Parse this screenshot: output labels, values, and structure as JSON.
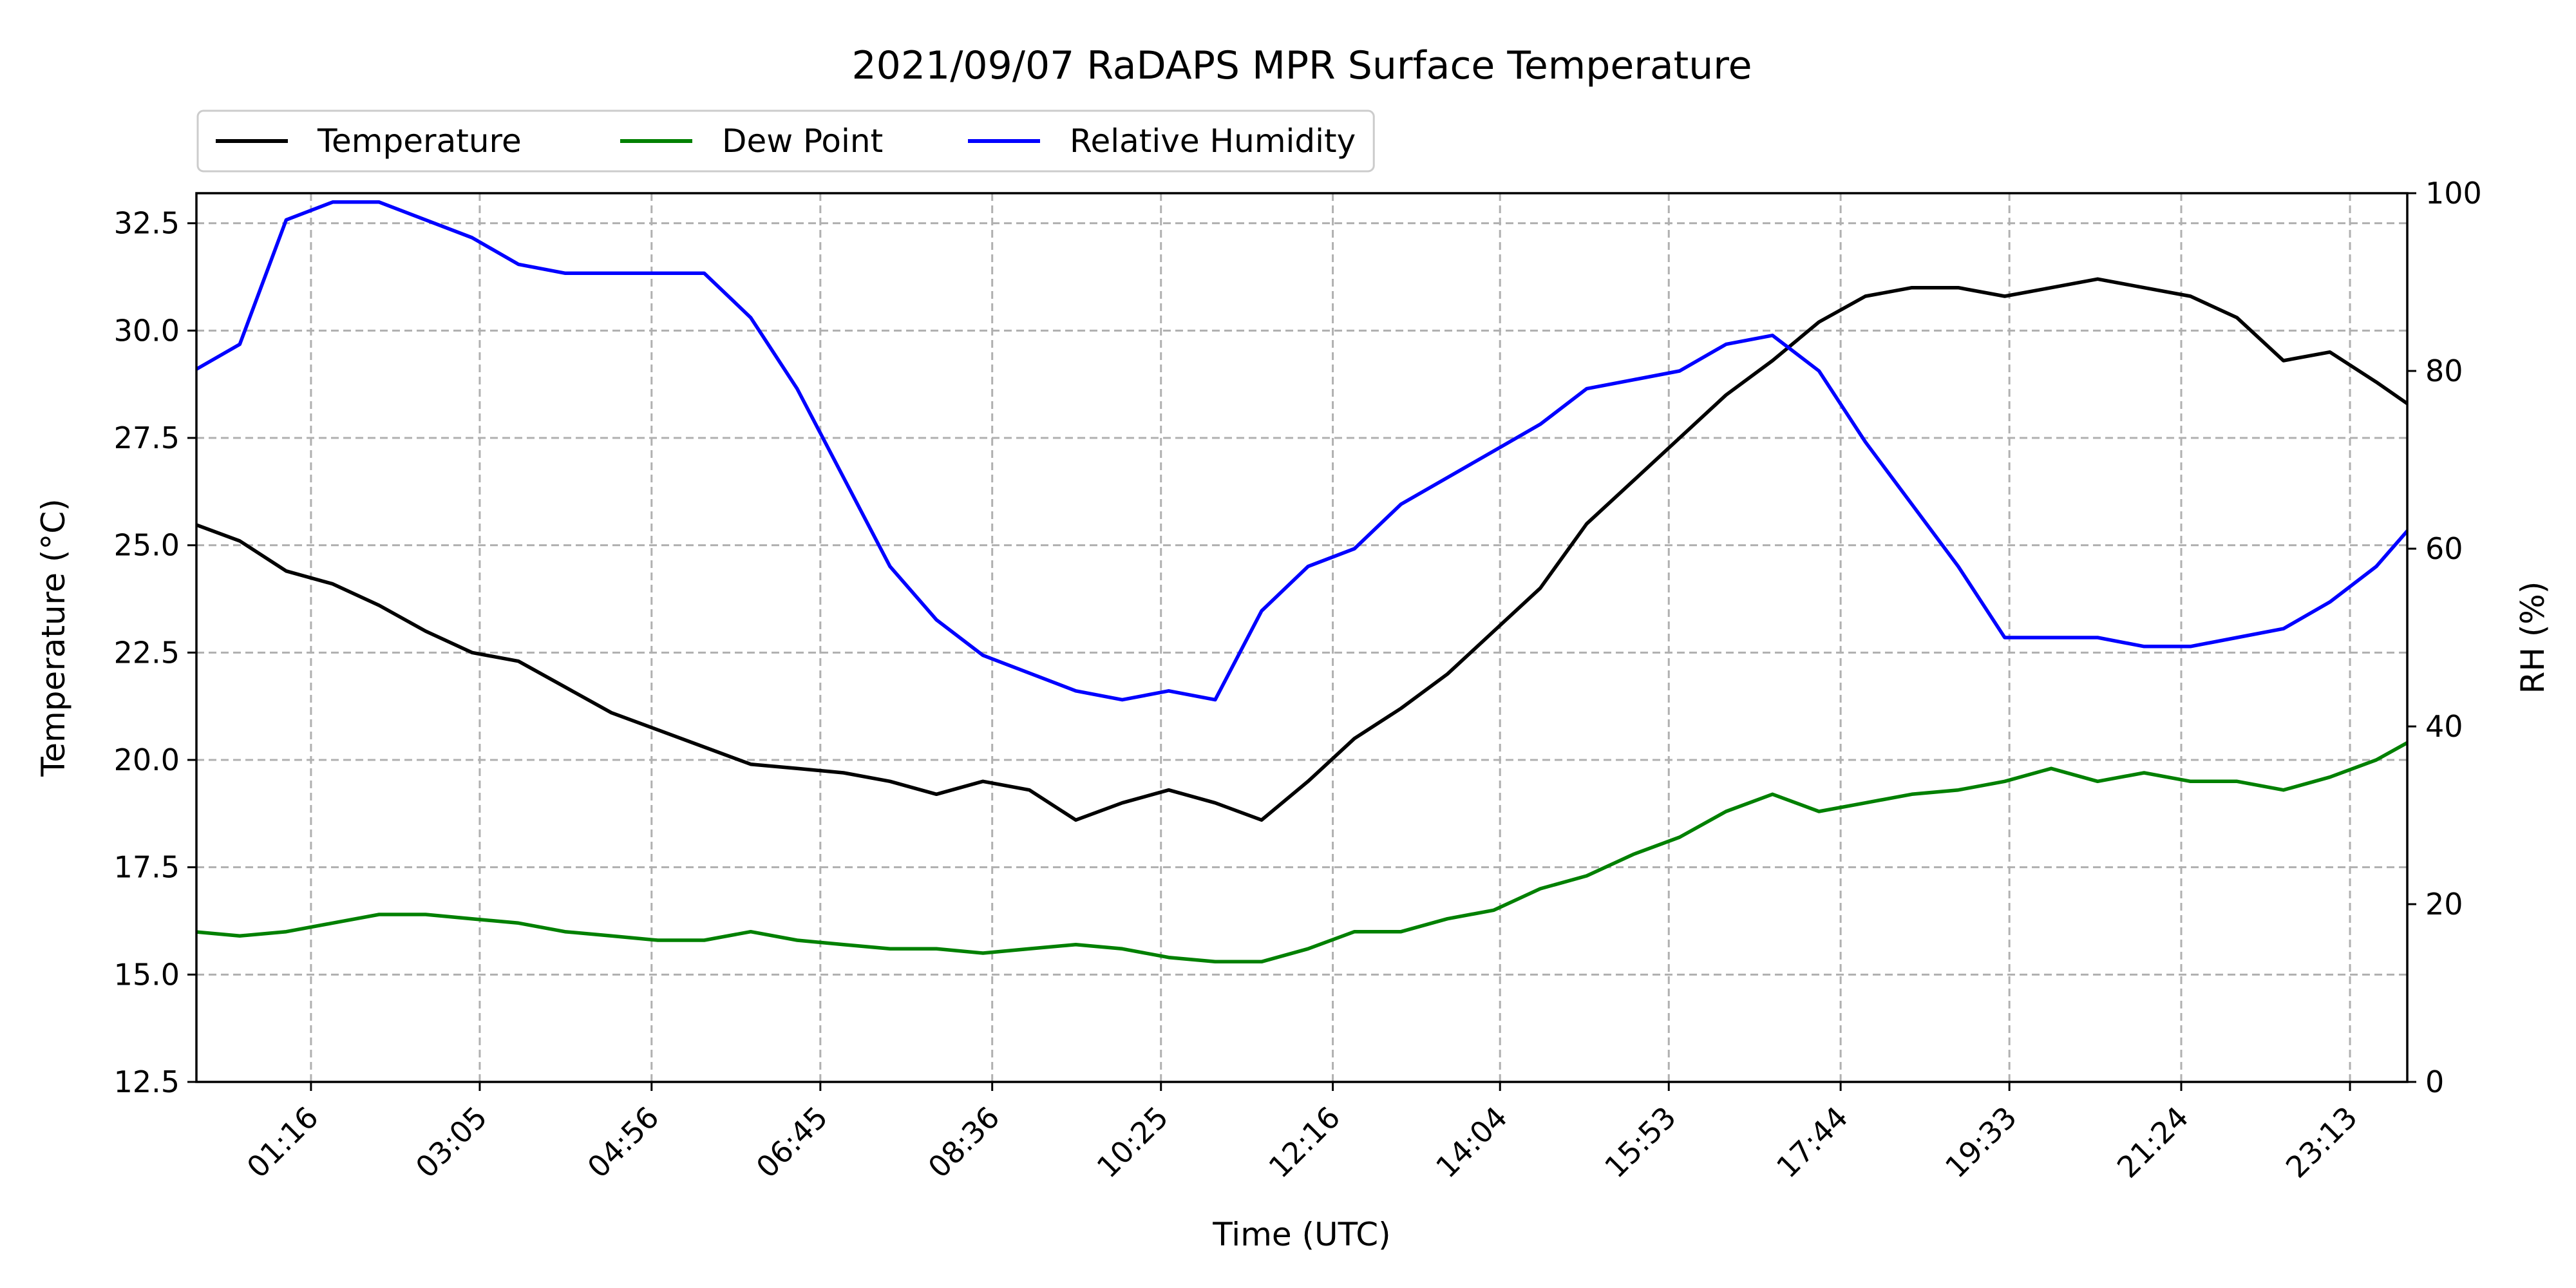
{
  "chart_data": {
    "type": "line",
    "title": "2021/09/07 RaDAPS MPR Surface Temperature",
    "xlabel": "Time (UTC)",
    "ylabel": "Temperature ($^\\circ$C)",
    "ylabel_display": "Temperature (°C)",
    "y2label": "RH (%)",
    "x_unit": "minutes after 00:00 UTC",
    "xlim": [
      "00:02",
      "23:50"
    ],
    "ylim": [
      12.5,
      33.2
    ],
    "y2lim": [
      0,
      100
    ],
    "x_ticks": [
      "01:16",
      "03:05",
      "04:56",
      "06:45",
      "08:36",
      "10:25",
      "12:16",
      "14:04",
      "15:53",
      "17:44",
      "19:33",
      "21:24",
      "23:13"
    ],
    "y_ticks": [
      "12.5",
      "15.0",
      "17.5",
      "20.0",
      "22.5",
      "25.0",
      "27.5",
      "30.0",
      "32.5"
    ],
    "y2_ticks": [
      "0",
      "20",
      "40",
      "60",
      "80",
      "100"
    ],
    "grid": true,
    "legend_position": "above-left",
    "legend_ncol": 3,
    "x_times": [
      "00:00",
      "00:30",
      "01:00",
      "01:30",
      "02:00",
      "02:30",
      "03:00",
      "03:30",
      "04:00",
      "04:30",
      "05:00",
      "05:30",
      "06:00",
      "06:30",
      "07:00",
      "07:30",
      "08:00",
      "08:30",
      "09:00",
      "09:30",
      "10:00",
      "10:30",
      "11:00",
      "11:30",
      "12:00",
      "12:30",
      "13:00",
      "13:30",
      "14:00",
      "14:30",
      "15:00",
      "15:30",
      "16:00",
      "16:30",
      "17:00",
      "17:30",
      "18:00",
      "18:30",
      "19:00",
      "19:30",
      "20:00",
      "20:30",
      "21:00",
      "21:30",
      "22:00",
      "22:30",
      "23:00",
      "23:30",
      "23:50"
    ],
    "series": [
      {
        "name": "Temperature",
        "color": "#000000",
        "axis": "left",
        "values": [
          25.5,
          25.1,
          24.4,
          24.1,
          23.6,
          23.0,
          22.5,
          22.3,
          21.7,
          21.1,
          20.7,
          20.3,
          19.9,
          19.8,
          19.7,
          19.5,
          19.2,
          19.5,
          19.3,
          18.6,
          19.0,
          19.3,
          19.0,
          18.6,
          19.5,
          20.5,
          21.2,
          22.0,
          23.0,
          24.0,
          25.5,
          26.5,
          27.5,
          28.5,
          29.3,
          30.2,
          30.8,
          31.0,
          31.0,
          30.8,
          31.0,
          31.2,
          31.0,
          30.8,
          30.3,
          29.3,
          29.5,
          28.8,
          28.3
        ]
      },
      {
        "name": "Dew Point",
        "color": "#008000",
        "axis": "left",
        "values": [
          16.0,
          15.9,
          16.0,
          16.2,
          16.4,
          16.4,
          16.3,
          16.2,
          16.0,
          15.9,
          15.8,
          15.8,
          16.0,
          15.8,
          15.7,
          15.6,
          15.6,
          15.5,
          15.6,
          15.7,
          15.6,
          15.4,
          15.3,
          15.3,
          15.6,
          16.0,
          16.0,
          16.3,
          16.5,
          17.0,
          17.3,
          17.8,
          18.2,
          18.8,
          19.2,
          18.8,
          19.0,
          19.2,
          19.3,
          19.5,
          19.8,
          19.5,
          19.7,
          19.5,
          19.5,
          19.3,
          19.6,
          20.0,
          20.4
        ]
      },
      {
        "name": "Relative Humidity",
        "color": "#0000ff",
        "axis": "right",
        "values": [
          80,
          83,
          97,
          99,
          99,
          97,
          95,
          92,
          91,
          91,
          91,
          91,
          86,
          78,
          68,
          58,
          52,
          48,
          46,
          44,
          43,
          44,
          43,
          53,
          58,
          60,
          65,
          68,
          71,
          74,
          78,
          79,
          80,
          83,
          84,
          80,
          72,
          65,
          58,
          50,
          50,
          50,
          49,
          49,
          50,
          51,
          54,
          58,
          62
        ]
      }
    ]
  }
}
